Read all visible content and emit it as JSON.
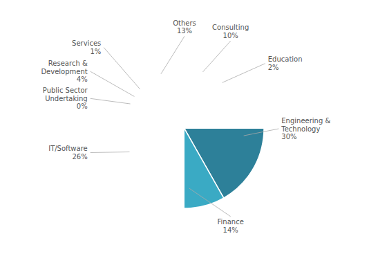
{
  "chart_data": {
    "type": "pie",
    "categories": [
      "Consulting",
      "Education",
      "Engineering &\nTechnology",
      "Finance",
      "IT/Software",
      "Public Sector\nUndertaking",
      "Research &\nDevelopment",
      "Services",
      "Others"
    ],
    "values": [
      10,
      2,
      30,
      14,
      26,
      0.5,
      4,
      1,
      13
    ],
    "value_labels": [
      "10%",
      "2%",
      "30%",
      "14%",
      "26%",
      "0%",
      "4%",
      "1%",
      "13%"
    ],
    "colors": [
      "#2d6e7e",
      "#3a9ab5",
      "#2d8099",
      "#3aaac4",
      "#3aaac4",
      "#c5dde6",
      "#a8ccd8",
      "#bcd8e2",
      "#a0c4d2"
    ],
    "data_labels": true
  }
}
